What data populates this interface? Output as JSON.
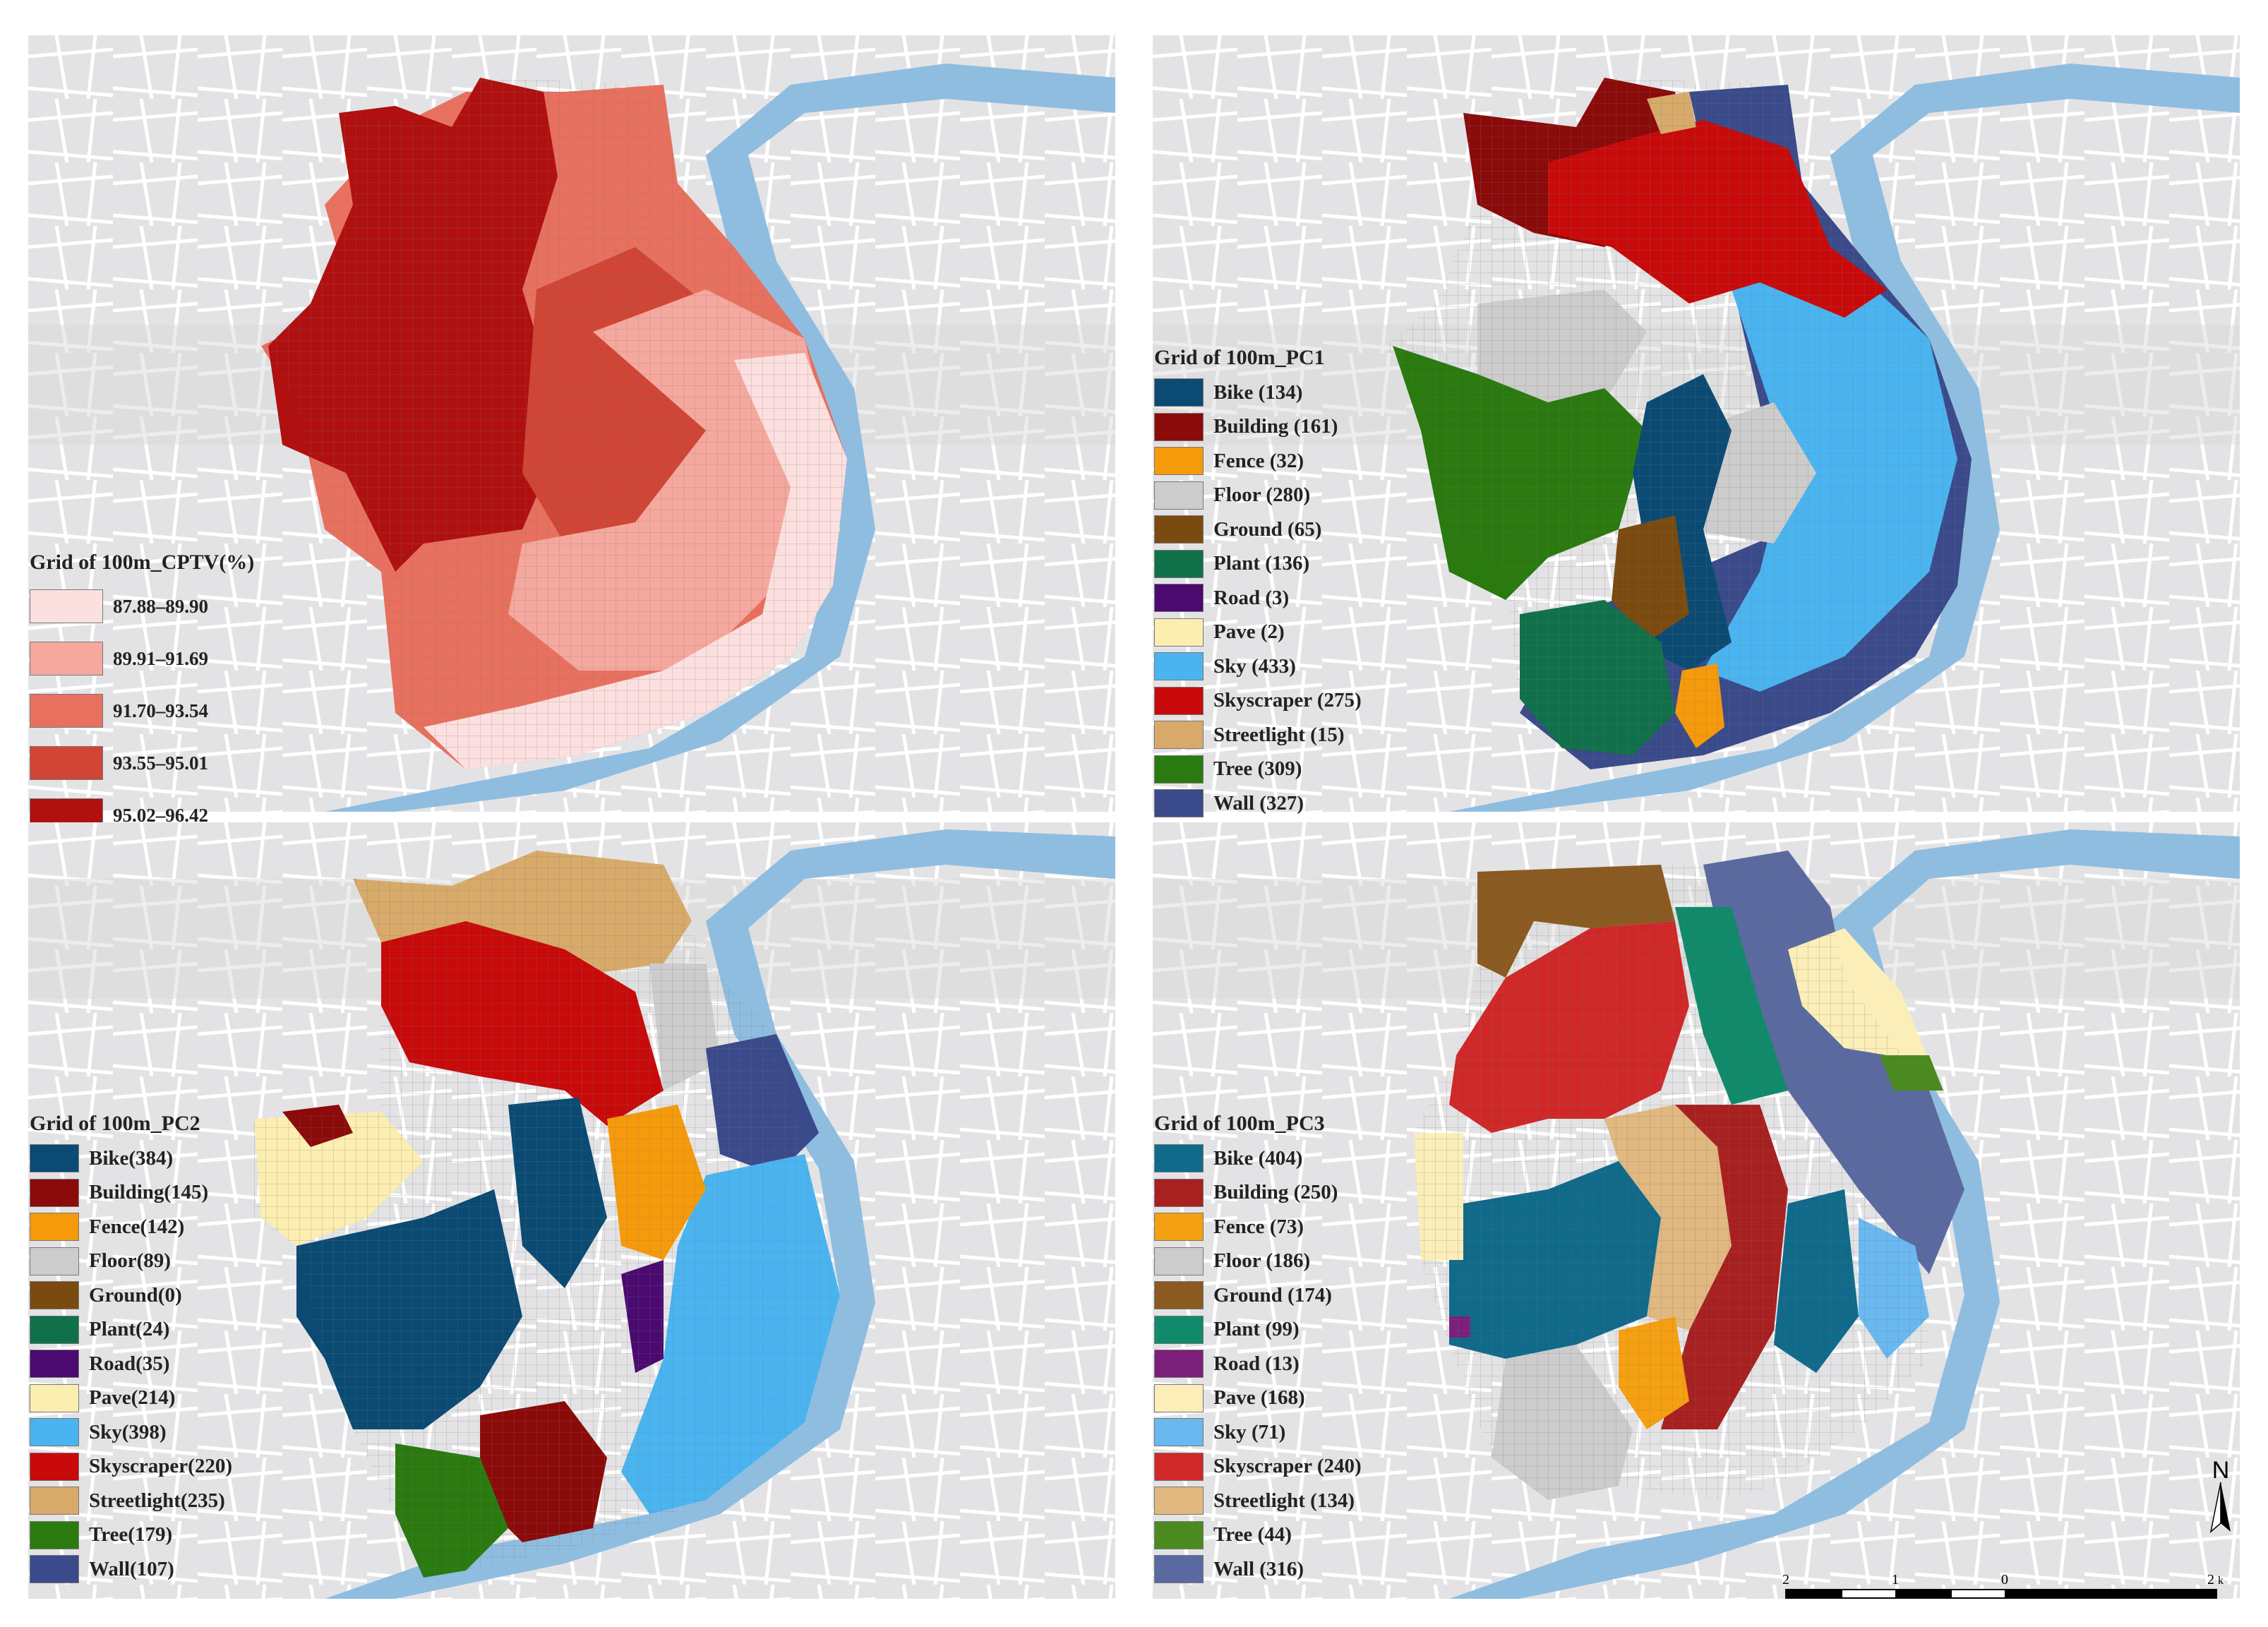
{
  "panels": [
    {
      "id": "cptv",
      "legend": {
        "title": "Grid of 100m_CPTV(%)",
        "items": [
          {
            "label": "87.88–89.90",
            "color": "#fce0df"
          },
          {
            "label": "89.91–91.69",
            "color": "#f5a89e"
          },
          {
            "label": "91.70–93.54",
            "color": "#e8705f"
          },
          {
            "label": "93.55–95.01",
            "color": "#d04535"
          },
          {
            "label": "95.02–96.42",
            "color": "#b01010"
          }
        ]
      }
    },
    {
      "id": "pc1",
      "legend": {
        "title": "Grid of 100m_PC1",
        "items": [
          {
            "label": "Bike (134)",
            "color": "#0b4a73"
          },
          {
            "label": "Building (161)",
            "color": "#8b0a0a"
          },
          {
            "label": "Fence (32)",
            "color": "#f59a0a"
          },
          {
            "label": "Floor (280)",
            "color": "#cccccc"
          },
          {
            "label": "Ground (65)",
            "color": "#7a4a10"
          },
          {
            "label": "Plant (136)",
            "color": "#10704a"
          },
          {
            "label": "Road (3)",
            "color": "#4a0a70"
          },
          {
            "label": "Pave (2)",
            "color": "#fbeeb0"
          },
          {
            "label": "Sky (433)",
            "color": "#4ab4f0"
          },
          {
            "label": "Skyscraper (275)",
            "color": "#c80a0a"
          },
          {
            "label": "Streetlight (15)",
            "color": "#d8aa6a"
          },
          {
            "label": "Tree (309)",
            "color": "#2a7a10"
          },
          {
            "label": "Wall (327)",
            "color": "#3a4a8a"
          }
        ]
      }
    },
    {
      "id": "pc2",
      "legend": {
        "title": "Grid of 100m_PC2",
        "items": [
          {
            "label": "Bike(384)",
            "color": "#0b4a73"
          },
          {
            "label": "Building(145)",
            "color": "#8b0a0a"
          },
          {
            "label": "Fence(142)",
            "color": "#f59a0a"
          },
          {
            "label": "Floor(89)",
            "color": "#cccccc"
          },
          {
            "label": "Ground(0)",
            "color": "#7a4a10"
          },
          {
            "label": "Plant(24)",
            "color": "#10704a"
          },
          {
            "label": "Road(35)",
            "color": "#4a0a70"
          },
          {
            "label": "Pave(214)",
            "color": "#fbeeb0"
          },
          {
            "label": "Sky(398)",
            "color": "#4ab4f0"
          },
          {
            "label": "Skyscraper(220)",
            "color": "#c80a0a"
          },
          {
            "label": "Streetlight(235)",
            "color": "#d8aa6a"
          },
          {
            "label": "Tree(179)",
            "color": "#2a7a10"
          },
          {
            "label": "Wall(107)",
            "color": "#3a4a8a"
          }
        ]
      }
    },
    {
      "id": "pc3",
      "legend": {
        "title": "Grid of 100m_PC3",
        "items": [
          {
            "label": "Bike (404)",
            "color": "#106a8a"
          },
          {
            "label": "Building (250)",
            "color": "#a82020"
          },
          {
            "label": "Fence (73)",
            "color": "#f5a010"
          },
          {
            "label": "Floor (186)",
            "color": "#cccccc"
          },
          {
            "label": "Ground (174)",
            "color": "#8a5a20"
          },
          {
            "label": "Plant (99)",
            "color": "#108a6a"
          },
          {
            "label": "Road (13)",
            "color": "#7a207a"
          },
          {
            "label": "Pave (168)",
            "color": "#fbeeb8"
          },
          {
            "label": "Sky (71)",
            "color": "#6ab8f0"
          },
          {
            "label": "Skyscraper (240)",
            "color": "#d02828"
          },
          {
            "label": "Streetlight (134)",
            "color": "#e0b880"
          },
          {
            "label": "Tree (44)",
            "color": "#4a8a20"
          },
          {
            "label": "Wall (316)",
            "color": "#5a6aa0"
          }
        ]
      }
    }
  ],
  "north_arrow": {
    "label": "N",
    "icon": "north-arrow-icon"
  },
  "scale_bar": {
    "ticks": [
      "2",
      "1",
      "0",
      "2"
    ],
    "unit": "km"
  },
  "colors": {
    "river": "#8fbde0",
    "base": "#e3e3e5",
    "roads": "#ffffff"
  }
}
